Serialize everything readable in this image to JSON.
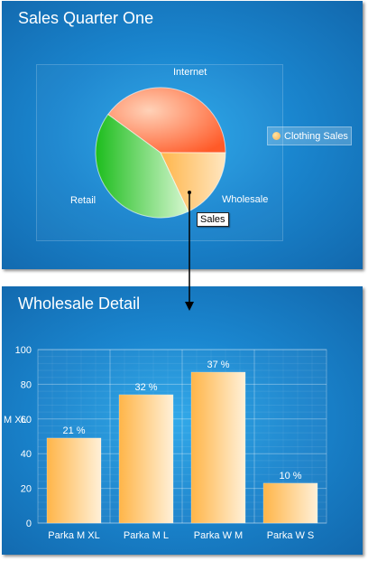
{
  "chart_data": [
    {
      "type": "pie",
      "title": "Sales Quarter One",
      "categories": [
        "Internet",
        "Wholesale",
        "Retail"
      ],
      "values": [
        40,
        18,
        42
      ],
      "colors": [
        "#ff6b3d",
        "#ffc26b",
        "#33cc33"
      ],
      "legend": {
        "entries": [
          "Clothing Sales"
        ],
        "position": "right"
      },
      "callout": "Sales",
      "highlighted": "Wholesale"
    },
    {
      "type": "bar",
      "title": "Wholesale Detail",
      "categories": [
        "Parka M XL",
        "Parka M L",
        "Parka W M",
        "Parka W S"
      ],
      "values": [
        49,
        74,
        87,
        23
      ],
      "data_labels": [
        "21 %",
        "32 %",
        "37 %",
        "10 %"
      ],
      "xlabel": "",
      "ylabel": "M XL",
      "ylim": [
        0,
        100
      ],
      "yticks": [
        0,
        20,
        40,
        60,
        80,
        100
      ],
      "grid": true,
      "bar_color": "#ffc26b"
    }
  ]
}
